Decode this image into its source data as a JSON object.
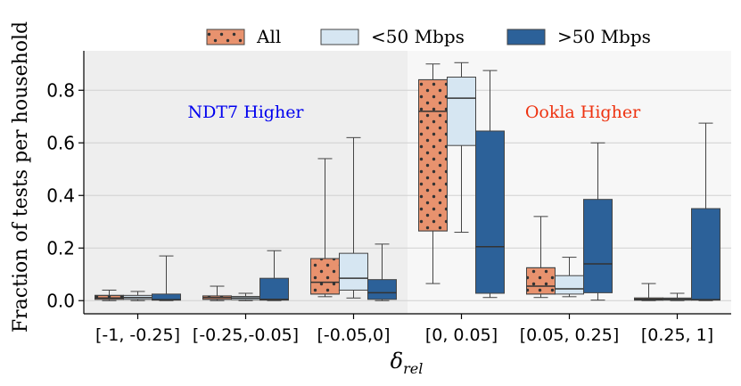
{
  "chart_data": {
    "type": "box",
    "ylabel": "Fraction of tests per household",
    "xlabel_main": "δ",
    "xlabel_sub": "rel",
    "ylim": [
      -0.05,
      0.95
    ],
    "yticks": [
      0.0,
      0.2,
      0.4,
      0.6,
      0.8
    ],
    "ytick_labels": [
      "0.0",
      "0.2",
      "0.4",
      "0.6",
      "0.8"
    ],
    "grid": true,
    "legend_position": "top",
    "categories": [
      "[-1, -0.25]",
      "[-0.25,-0.05]",
      "[-0.05,0]",
      "[0, 0.05]",
      "[0.05, 0.25]",
      "[0.25, 1]"
    ],
    "regions": [
      {
        "label": "NDT7 Higher",
        "color": "#0000ee",
        "categories": [
          0,
          1,
          2
        ],
        "shade": "#eeeeee"
      },
      {
        "label": "Ookla Higher",
        "color": "#ee3311",
        "categories": [
          3,
          4,
          5
        ],
        "shade": "#f7f7f7"
      }
    ],
    "series": [
      {
        "name": "All",
        "color": "#e8926e",
        "hatch": "dots",
        "boxes": [
          {
            "whislo": 0.0,
            "q1": 0.005,
            "med": 0.01,
            "q3": 0.02,
            "whishi": 0.04
          },
          {
            "whislo": 0.0,
            "q1": 0.005,
            "med": 0.012,
            "q3": 0.018,
            "whishi": 0.055
          },
          {
            "whislo": 0.015,
            "q1": 0.025,
            "med": 0.07,
            "q3": 0.16,
            "whishi": 0.54
          },
          {
            "whislo": 0.065,
            "q1": 0.265,
            "med": 0.72,
            "q3": 0.84,
            "whishi": 0.9
          },
          {
            "whislo": 0.012,
            "q1": 0.025,
            "med": 0.055,
            "q3": 0.125,
            "whishi": 0.32
          },
          {
            "whislo": 0.0,
            "q1": 0.002,
            "med": 0.005,
            "q3": 0.01,
            "whishi": 0.065
          }
        ]
      },
      {
        "name": "<50 Mbps",
        "color": "#d6e6f2",
        "hatch": "none",
        "boxes": [
          {
            "whislo": 0.0,
            "q1": 0.005,
            "med": 0.012,
            "q3": 0.02,
            "whishi": 0.035
          },
          {
            "whislo": 0.0,
            "q1": 0.004,
            "med": 0.01,
            "q3": 0.016,
            "whishi": 0.028
          },
          {
            "whislo": 0.01,
            "q1": 0.04,
            "med": 0.085,
            "q3": 0.18,
            "whishi": 0.62
          },
          {
            "whislo": 0.26,
            "q1": 0.59,
            "med": 0.77,
            "q3": 0.85,
            "whishi": 0.905
          },
          {
            "whislo": 0.015,
            "q1": 0.025,
            "med": 0.045,
            "q3": 0.095,
            "whishi": 0.165
          },
          {
            "whislo": 0.0,
            "q1": 0.002,
            "med": 0.006,
            "q3": 0.01,
            "whishi": 0.028
          }
        ]
      },
      {
        "name": ">50 Mbps",
        "color": "#2c6199",
        "hatch": "none",
        "boxes": [
          {
            "whislo": 0.0,
            "q1": 0.002,
            "med": 0.004,
            "q3": 0.025,
            "whishi": 0.17
          },
          {
            "whislo": 0.0,
            "q1": 0.002,
            "med": 0.005,
            "q3": 0.085,
            "whishi": 0.19
          },
          {
            "whislo": 0.0,
            "q1": 0.005,
            "med": 0.03,
            "q3": 0.08,
            "whishi": 0.215
          },
          {
            "whislo": 0.012,
            "q1": 0.028,
            "med": 0.205,
            "q3": 0.645,
            "whishi": 0.875
          },
          {
            "whislo": 0.002,
            "q1": 0.03,
            "med": 0.14,
            "q3": 0.385,
            "whishi": 0.6
          },
          {
            "whislo": 0.0,
            "q1": 0.002,
            "med": 0.004,
            "q3": 0.35,
            "whishi": 0.675
          }
        ]
      }
    ]
  }
}
